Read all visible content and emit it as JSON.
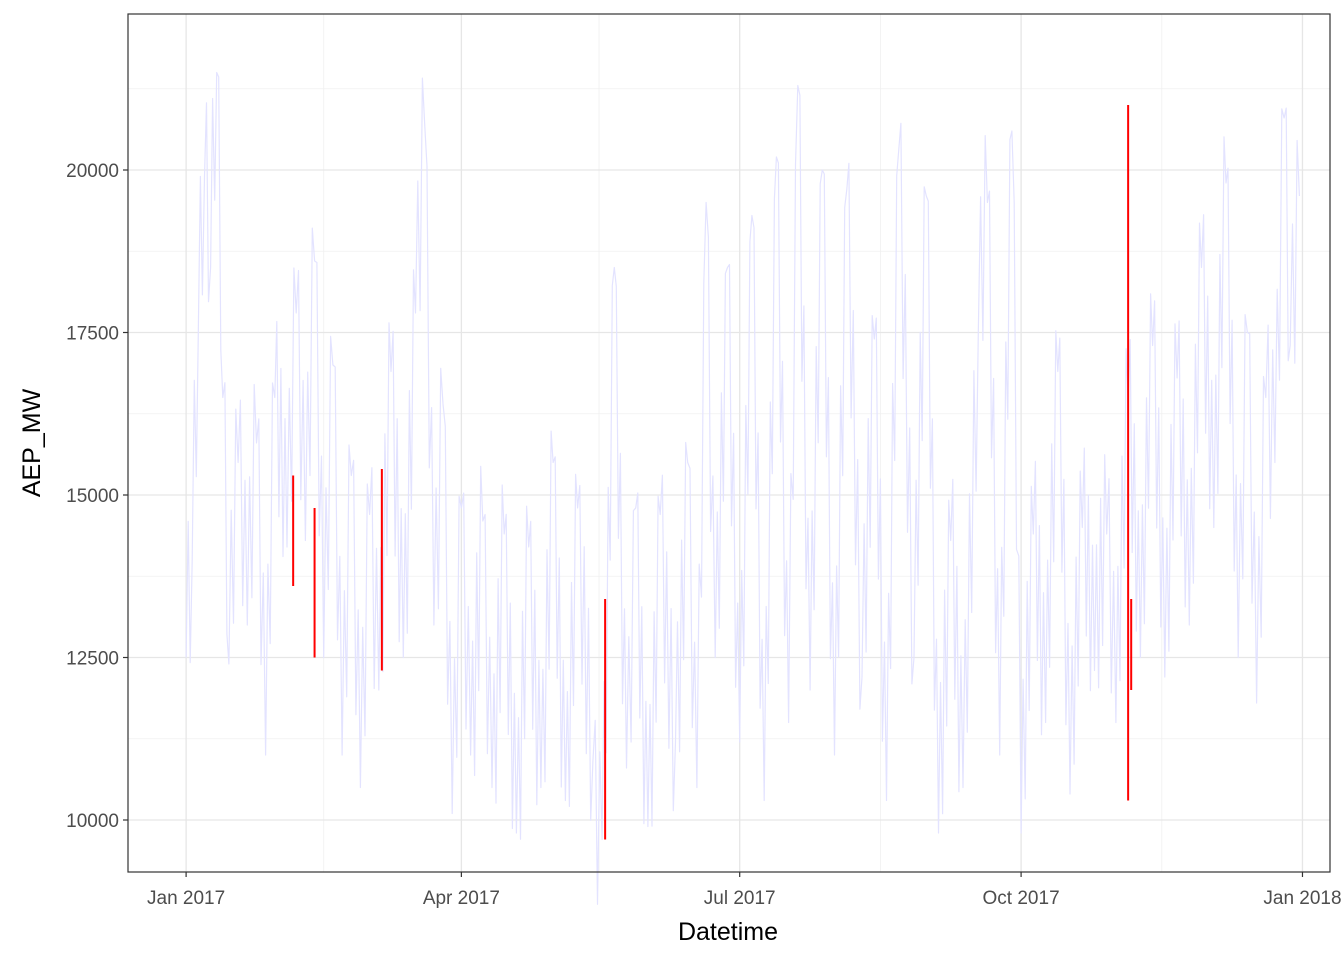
{
  "chart_data": {
    "type": "line",
    "xlabel": "Datetime",
    "ylabel": "AEP_MW",
    "x_range": [
      "2016-12-13",
      "2018-01-10"
    ],
    "y_range": [
      9200,
      22400
    ],
    "grid": true,
    "x_ticks": [
      {
        "date": "2017-01-01",
        "label": "Jan 2017"
      },
      {
        "date": "2017-04-01",
        "label": "Apr 2017"
      },
      {
        "date": "2017-07-01",
        "label": "Jul 2017"
      },
      {
        "date": "2017-10-01",
        "label": "Oct 2017"
      },
      {
        "date": "2018-01-01",
        "label": "Jan 2018"
      }
    ],
    "x_minor_dates": [
      "2017-02-15",
      "2017-05-16",
      "2017-08-16",
      "2017-11-16"
    ],
    "y_ticks": [
      {
        "value": 10000,
        "label": "10000"
      },
      {
        "value": 12500,
        "label": "12500"
      },
      {
        "value": 15000,
        "label": "15000"
      },
      {
        "value": 17500,
        "label": "17500"
      },
      {
        "value": 20000,
        "label": "20000"
      }
    ],
    "y_minor": [
      11250,
      13750,
      16250,
      18750,
      21250
    ],
    "series": [
      {
        "color": "#e3e3ff",
        "values": [
          [
            "2017-01-01",
            12500
          ],
          [
            "2017-01-03",
            14000
          ],
          [
            "2017-01-05",
            17500
          ],
          [
            "2017-01-07",
            19900
          ],
          [
            "2017-01-09",
            18500
          ],
          [
            "2017-01-11",
            21500
          ],
          [
            "2017-01-13",
            16500
          ],
          [
            "2017-01-15",
            12400
          ],
          [
            "2017-01-18",
            15500
          ],
          [
            "2017-01-21",
            13000
          ],
          [
            "2017-01-24",
            15800
          ],
          [
            "2017-01-27",
            11000
          ],
          [
            "2017-01-30",
            16500
          ],
          [
            "2017-02-03",
            14200
          ],
          [
            "2017-02-06",
            17800
          ],
          [
            "2017-02-09",
            14300
          ],
          [
            "2017-02-12",
            18600
          ],
          [
            "2017-02-15",
            12500
          ],
          [
            "2017-02-18",
            17000
          ],
          [
            "2017-02-21",
            11000
          ],
          [
            "2017-02-24",
            15300
          ],
          [
            "2017-02-27",
            10500
          ],
          [
            "2017-03-02",
            14700
          ],
          [
            "2017-03-05",
            12000
          ],
          [
            "2017-03-09",
            16900
          ],
          [
            "2017-03-13",
            12500
          ],
          [
            "2017-03-17",
            17800
          ],
          [
            "2017-03-20",
            20700
          ],
          [
            "2017-03-23",
            13000
          ],
          [
            "2017-03-26",
            16400
          ],
          [
            "2017-03-29",
            10100
          ],
          [
            "2017-04-01",
            14800
          ],
          [
            "2017-04-04",
            11000
          ],
          [
            "2017-04-08",
            14600
          ],
          [
            "2017-04-11",
            10500
          ],
          [
            "2017-04-15",
            14400
          ],
          [
            "2017-04-19",
            9800
          ],
          [
            "2017-04-23",
            14200
          ],
          [
            "2017-04-27",
            10500
          ],
          [
            "2017-05-01",
            15500
          ],
          [
            "2017-05-05",
            10300
          ],
          [
            "2017-05-09",
            14800
          ],
          [
            "2017-05-14",
            10900
          ],
          [
            "2017-05-17",
            9700
          ],
          [
            "2017-05-21",
            18500
          ],
          [
            "2017-05-25",
            10800
          ],
          [
            "2017-05-28",
            14800
          ],
          [
            "2017-06-01",
            9900
          ],
          [
            "2017-06-05",
            14700
          ],
          [
            "2017-06-10",
            11200
          ],
          [
            "2017-06-14",
            15500
          ],
          [
            "2017-06-17",
            10500
          ],
          [
            "2017-06-20",
            19500
          ],
          [
            "2017-06-23",
            12500
          ],
          [
            "2017-06-27",
            18500
          ],
          [
            "2017-07-01",
            11200
          ],
          [
            "2017-07-05",
            19300
          ],
          [
            "2017-07-09",
            10300
          ],
          [
            "2017-07-13",
            20200
          ],
          [
            "2017-07-17",
            11500
          ],
          [
            "2017-07-20",
            21300
          ],
          [
            "2017-07-24",
            12000
          ],
          [
            "2017-07-28",
            20000
          ],
          [
            "2017-08-01",
            11000
          ],
          [
            "2017-08-05",
            19700
          ],
          [
            "2017-08-10",
            12200
          ],
          [
            "2017-08-14",
            17400
          ],
          [
            "2017-08-18",
            10300
          ],
          [
            "2017-08-22",
            20300
          ],
          [
            "2017-08-27",
            12500
          ],
          [
            "2017-08-31",
            19600
          ],
          [
            "2017-09-04",
            9800
          ],
          [
            "2017-09-08",
            14300
          ],
          [
            "2017-09-12",
            10500
          ],
          [
            "2017-09-17",
            17500
          ],
          [
            "2017-09-20",
            19500
          ],
          [
            "2017-09-24",
            11000
          ],
          [
            "2017-09-28",
            20600
          ],
          [
            "2017-10-01",
            9800
          ],
          [
            "2017-10-05",
            14400
          ],
          [
            "2017-10-09",
            11500
          ],
          [
            "2017-10-13",
            16900
          ],
          [
            "2017-10-17",
            10400
          ],
          [
            "2017-10-21",
            14500
          ],
          [
            "2017-10-25",
            12300
          ],
          [
            "2017-10-29",
            14400
          ],
          [
            "2017-11-01",
            11500
          ],
          [
            "2017-11-05",
            16500
          ],
          [
            "2017-11-09",
            12500
          ],
          [
            "2017-11-13",
            17300
          ],
          [
            "2017-11-17",
            12200
          ],
          [
            "2017-11-21",
            16800
          ],
          [
            "2017-11-25",
            13000
          ],
          [
            "2017-11-29",
            18500
          ],
          [
            "2017-12-03",
            14500
          ],
          [
            "2017-12-07",
            19800
          ],
          [
            "2017-12-11",
            12500
          ],
          [
            "2017-12-14",
            17500
          ],
          [
            "2017-12-17",
            11800
          ],
          [
            "2017-12-20",
            16500
          ],
          [
            "2017-12-23",
            15500
          ],
          [
            "2017-12-26",
            20800
          ],
          [
            "2017-12-28",
            17300
          ],
          [
            "2017-12-31",
            19600
          ]
        ]
      },
      {
        "color": "#ff0000",
        "segments": [
          {
            "date": "2017-02-05",
            "low": 13600,
            "high": 15300
          },
          {
            "date": "2017-02-12",
            "low": 12500,
            "high": 14800
          },
          {
            "date": "2017-03-06",
            "low": 12300,
            "high": 15400
          },
          {
            "date": "2017-05-18",
            "low": 9700,
            "high": 13400
          },
          {
            "date": "2017-11-05",
            "low": 10300,
            "high": 21000
          },
          {
            "date": "2017-11-06",
            "low": 12000,
            "high": 13400
          }
        ]
      }
    ]
  }
}
